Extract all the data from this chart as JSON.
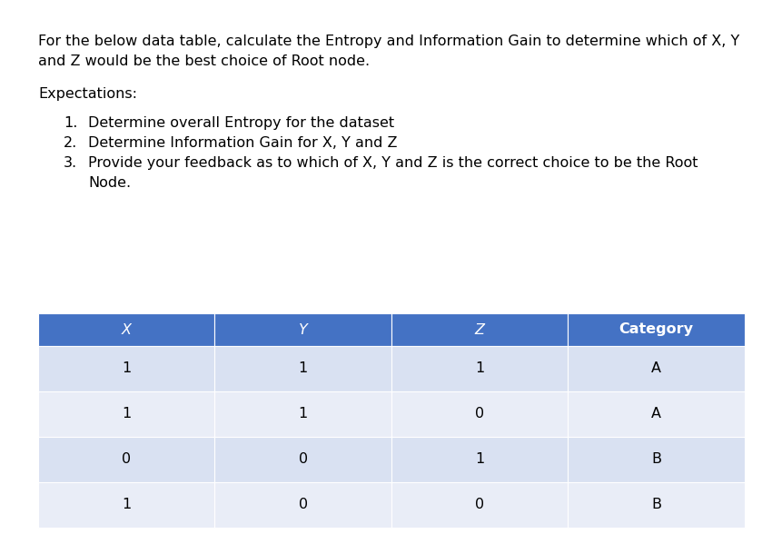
{
  "background_color": "#ffffff",
  "intro_text_line1": "For the below data table, calculate the Entropy and Information Gain to determine which of X, Y",
  "intro_text_line2": "and Z would be the best choice of Root node.",
  "expectations_label": "Expectations:",
  "list_items": [
    "Determine overall Entropy for the dataset",
    "Determine Information Gain for X, Y and Z",
    "Provide your feedback as to which of X, Y and Z is the correct choice to be the Root",
    "Node."
  ],
  "list_numbers": [
    "1.",
    "2.",
    "3.",
    ""
  ],
  "table_headers": [
    "X",
    "Y",
    "Z",
    "Category"
  ],
  "table_data": [
    [
      "1",
      "1",
      "1",
      "A"
    ],
    [
      "1",
      "1",
      "0",
      "A"
    ],
    [
      "0",
      "0",
      "1",
      "B"
    ],
    [
      "1",
      "0",
      "0",
      "B"
    ]
  ],
  "header_bg_color": "#4472c4",
  "header_text_color": "#ffffff",
  "row_colors": [
    "#d9e1f2",
    "#e9edf7",
    "#d9e1f2",
    "#e9edf7"
  ],
  "table_text_color": "#000000",
  "text_color": "#000000",
  "font_size": 11.5,
  "header_font_size": 11.5
}
